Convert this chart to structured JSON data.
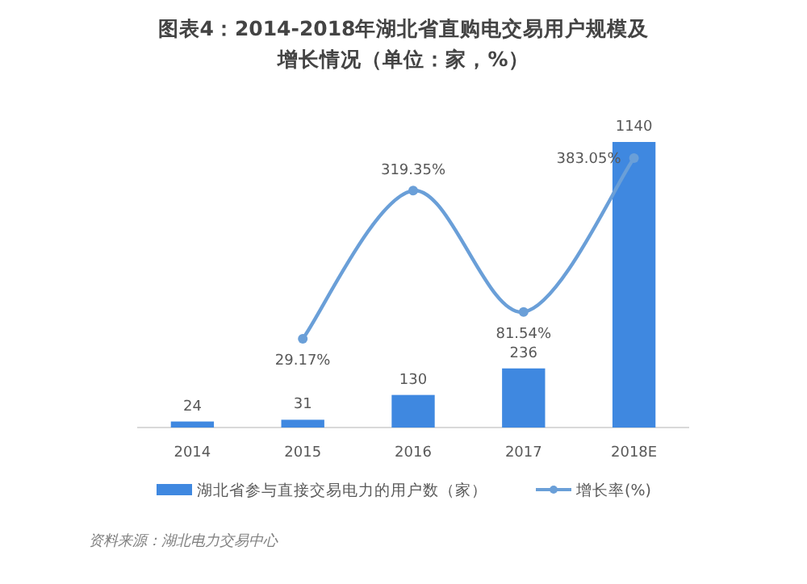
{
  "chart_data": {
    "type": "bar",
    "title": "图表4：2014-2018年湖北省直购电交易用户规模及增长情况（单位：家，%）",
    "categories": [
      "2014",
      "2015",
      "2016",
      "2017",
      "2018E"
    ],
    "series": [
      {
        "name": "湖北省参与直接交易电力的用户数（家）",
        "color": "#3f88e0",
        "values": [
          24,
          31,
          130,
          236,
          1140
        ],
        "value_labels": [
          "24",
          "31",
          "130",
          "236",
          "1140"
        ]
      },
      {
        "name": "增长率(%)",
        "type": "line",
        "axis": "y2",
        "color": "#6a9fd8",
        "values": [
          null,
          29.17,
          319.35,
          81.54,
          383.05
        ],
        "value_labels": [
          null,
          "29.17%",
          "319.35%",
          "81.54%",
          "383.05%"
        ]
      }
    ],
    "legend": "bottom",
    "marker": "circle",
    "annotations": [
      "资料来源：湖北电力交易中心"
    ]
  }
}
